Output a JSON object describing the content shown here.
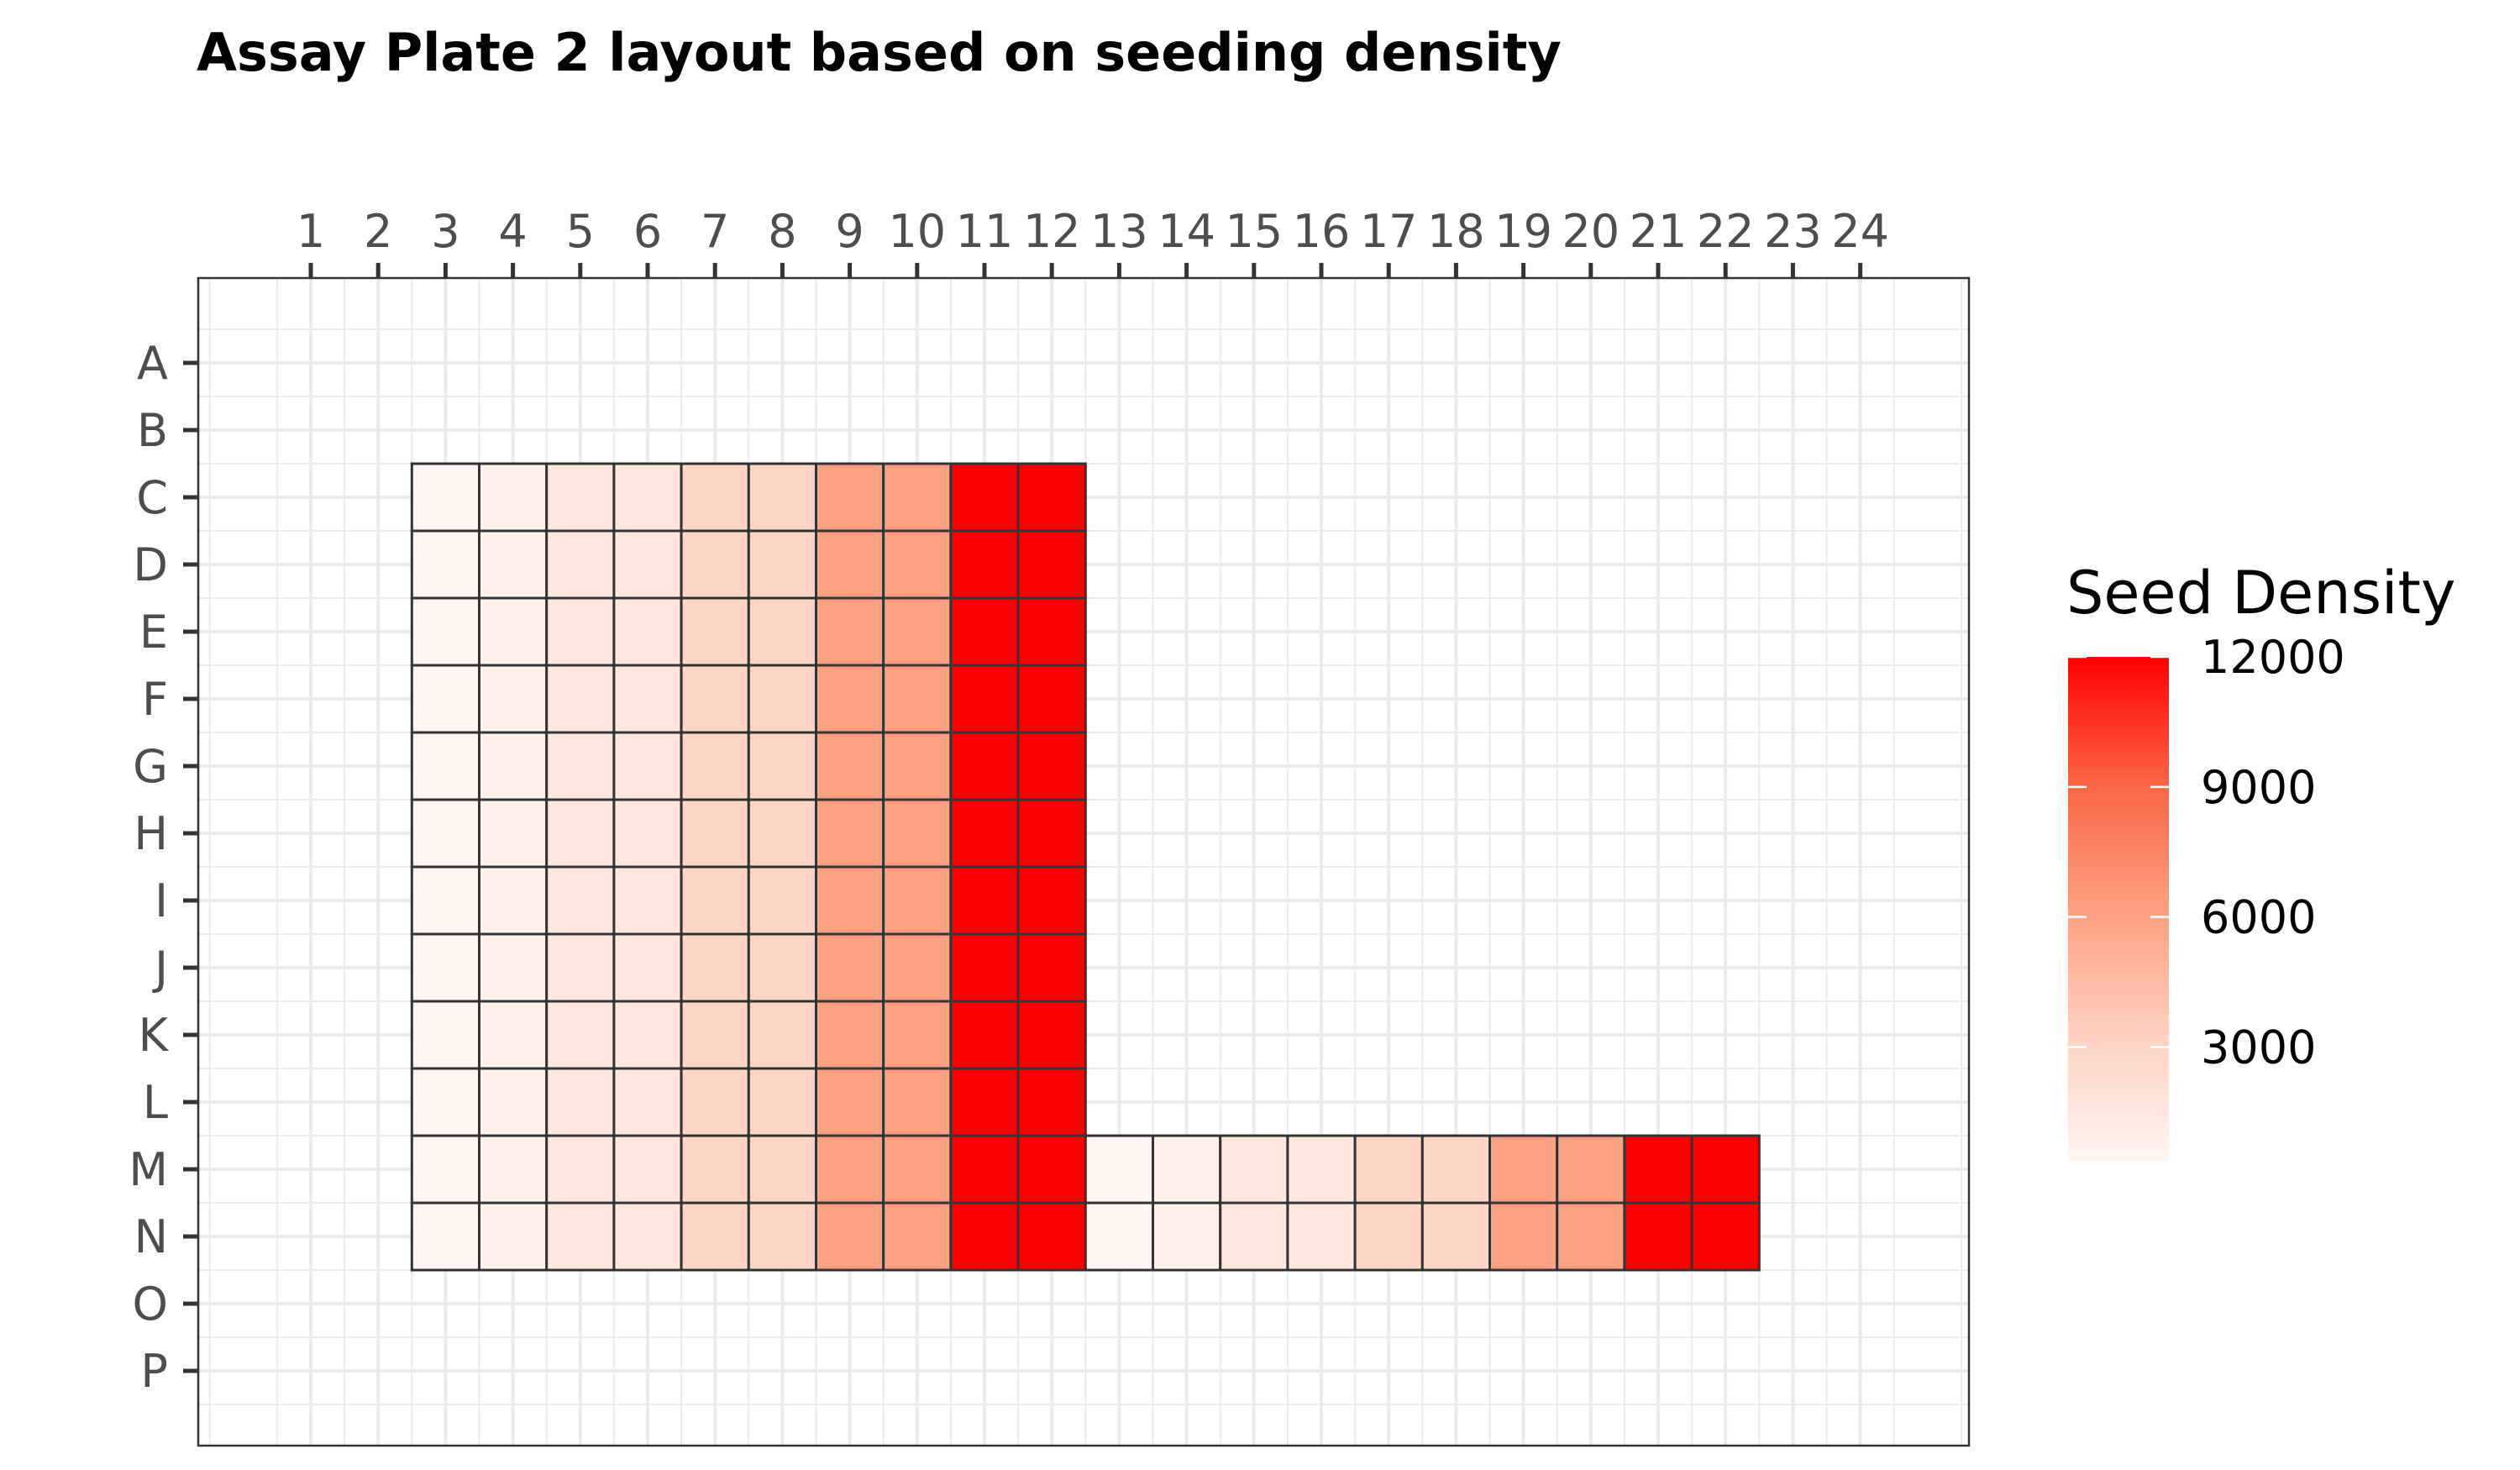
{
  "chart_data": {
    "type": "heatmap",
    "title": "Assay Plate 2 layout based on seeding density",
    "columns": [
      "1",
      "2",
      "3",
      "4",
      "5",
      "6",
      "7",
      "8",
      "9",
      "10",
      "11",
      "12",
      "13",
      "14",
      "15",
      "16",
      "17",
      "18",
      "19",
      "20",
      "21",
      "22",
      "23",
      "24"
    ],
    "rows": [
      "A",
      "B",
      "C",
      "D",
      "E",
      "F",
      "G",
      "H",
      "I",
      "J",
      "K",
      "L",
      "M",
      "N",
      "O",
      "P"
    ],
    "x_axis_position": "top",
    "grid": true,
    "legend": {
      "title": "Seed Density",
      "placement": "right",
      "breaks": [
        12000,
        9000,
        6000,
        3000
      ],
      "range": [
        375,
        12000
      ],
      "low_color": "#fff5f0",
      "high_color": "#ff0000"
    },
    "cells": [
      {
        "row": "C",
        "col": "3",
        "value": 375
      },
      {
        "row": "C",
        "col": "4",
        "value": 750
      },
      {
        "row": "C",
        "col": "5",
        "value": 1500
      },
      {
        "row": "C",
        "col": "6",
        "value": 1500
      },
      {
        "row": "C",
        "col": "7",
        "value": 3000
      },
      {
        "row": "C",
        "col": "8",
        "value": 3000
      },
      {
        "row": "C",
        "col": "9",
        "value": 6000
      },
      {
        "row": "C",
        "col": "10",
        "value": 6000
      },
      {
        "row": "C",
        "col": "11",
        "value": 12000
      },
      {
        "row": "C",
        "col": "12",
        "value": 12000
      },
      {
        "row": "D",
        "col": "3",
        "value": 375
      },
      {
        "row": "D",
        "col": "4",
        "value": 750
      },
      {
        "row": "D",
        "col": "5",
        "value": 1500
      },
      {
        "row": "D",
        "col": "6",
        "value": 1500
      },
      {
        "row": "D",
        "col": "7",
        "value": 3000
      },
      {
        "row": "D",
        "col": "8",
        "value": 3000
      },
      {
        "row": "D",
        "col": "9",
        "value": 6000
      },
      {
        "row": "D",
        "col": "10",
        "value": 6000
      },
      {
        "row": "D",
        "col": "11",
        "value": 12000
      },
      {
        "row": "D",
        "col": "12",
        "value": 12000
      },
      {
        "row": "E",
        "col": "3",
        "value": 375
      },
      {
        "row": "E",
        "col": "4",
        "value": 750
      },
      {
        "row": "E",
        "col": "5",
        "value": 1500
      },
      {
        "row": "E",
        "col": "6",
        "value": 1500
      },
      {
        "row": "E",
        "col": "7",
        "value": 3000
      },
      {
        "row": "E",
        "col": "8",
        "value": 3000
      },
      {
        "row": "E",
        "col": "9",
        "value": 6000
      },
      {
        "row": "E",
        "col": "10",
        "value": 6000
      },
      {
        "row": "E",
        "col": "11",
        "value": 12000
      },
      {
        "row": "E",
        "col": "12",
        "value": 12000
      },
      {
        "row": "F",
        "col": "3",
        "value": 375
      },
      {
        "row": "F",
        "col": "4",
        "value": 750
      },
      {
        "row": "F",
        "col": "5",
        "value": 1500
      },
      {
        "row": "F",
        "col": "6",
        "value": 1500
      },
      {
        "row": "F",
        "col": "7",
        "value": 3000
      },
      {
        "row": "F",
        "col": "8",
        "value": 3000
      },
      {
        "row": "F",
        "col": "9",
        "value": 6000
      },
      {
        "row": "F",
        "col": "10",
        "value": 6000
      },
      {
        "row": "F",
        "col": "11",
        "value": 12000
      },
      {
        "row": "F",
        "col": "12",
        "value": 12000
      },
      {
        "row": "G",
        "col": "3",
        "value": 375
      },
      {
        "row": "G",
        "col": "4",
        "value": 750
      },
      {
        "row": "G",
        "col": "5",
        "value": 1500
      },
      {
        "row": "G",
        "col": "6",
        "value": 1500
      },
      {
        "row": "G",
        "col": "7",
        "value": 3000
      },
      {
        "row": "G",
        "col": "8",
        "value": 3000
      },
      {
        "row": "G",
        "col": "9",
        "value": 6000
      },
      {
        "row": "G",
        "col": "10",
        "value": 6000
      },
      {
        "row": "G",
        "col": "11",
        "value": 12000
      },
      {
        "row": "G",
        "col": "12",
        "value": 12000
      },
      {
        "row": "H",
        "col": "3",
        "value": 375
      },
      {
        "row": "H",
        "col": "4",
        "value": 750
      },
      {
        "row": "H",
        "col": "5",
        "value": 1500
      },
      {
        "row": "H",
        "col": "6",
        "value": 1500
      },
      {
        "row": "H",
        "col": "7",
        "value": 3000
      },
      {
        "row": "H",
        "col": "8",
        "value": 3000
      },
      {
        "row": "H",
        "col": "9",
        "value": 6000
      },
      {
        "row": "H",
        "col": "10",
        "value": 6000
      },
      {
        "row": "H",
        "col": "11",
        "value": 12000
      },
      {
        "row": "H",
        "col": "12",
        "value": 12000
      },
      {
        "row": "I",
        "col": "3",
        "value": 375
      },
      {
        "row": "I",
        "col": "4",
        "value": 750
      },
      {
        "row": "I",
        "col": "5",
        "value": 1500
      },
      {
        "row": "I",
        "col": "6",
        "value": 1500
      },
      {
        "row": "I",
        "col": "7",
        "value": 3000
      },
      {
        "row": "I",
        "col": "8",
        "value": 3000
      },
      {
        "row": "I",
        "col": "9",
        "value": 6000
      },
      {
        "row": "I",
        "col": "10",
        "value": 6000
      },
      {
        "row": "I",
        "col": "11",
        "value": 12000
      },
      {
        "row": "I",
        "col": "12",
        "value": 12000
      },
      {
        "row": "J",
        "col": "3",
        "value": 375
      },
      {
        "row": "J",
        "col": "4",
        "value": 750
      },
      {
        "row": "J",
        "col": "5",
        "value": 1500
      },
      {
        "row": "J",
        "col": "6",
        "value": 1500
      },
      {
        "row": "J",
        "col": "7",
        "value": 3000
      },
      {
        "row": "J",
        "col": "8",
        "value": 3000
      },
      {
        "row": "J",
        "col": "9",
        "value": 6000
      },
      {
        "row": "J",
        "col": "10",
        "value": 6000
      },
      {
        "row": "J",
        "col": "11",
        "value": 12000
      },
      {
        "row": "J",
        "col": "12",
        "value": 12000
      },
      {
        "row": "K",
        "col": "3",
        "value": 375
      },
      {
        "row": "K",
        "col": "4",
        "value": 750
      },
      {
        "row": "K",
        "col": "5",
        "value": 1500
      },
      {
        "row": "K",
        "col": "6",
        "value": 1500
      },
      {
        "row": "K",
        "col": "7",
        "value": 3000
      },
      {
        "row": "K",
        "col": "8",
        "value": 3000
      },
      {
        "row": "K",
        "col": "9",
        "value": 6000
      },
      {
        "row": "K",
        "col": "10",
        "value": 6000
      },
      {
        "row": "K",
        "col": "11",
        "value": 12000
      },
      {
        "row": "K",
        "col": "12",
        "value": 12000
      },
      {
        "row": "L",
        "col": "3",
        "value": 375
      },
      {
        "row": "L",
        "col": "4",
        "value": 750
      },
      {
        "row": "L",
        "col": "5",
        "value": 1500
      },
      {
        "row": "L",
        "col": "6",
        "value": 1500
      },
      {
        "row": "L",
        "col": "7",
        "value": 3000
      },
      {
        "row": "L",
        "col": "8",
        "value": 3000
      },
      {
        "row": "L",
        "col": "9",
        "value": 6000
      },
      {
        "row": "L",
        "col": "10",
        "value": 6000
      },
      {
        "row": "L",
        "col": "11",
        "value": 12000
      },
      {
        "row": "L",
        "col": "12",
        "value": 12000
      },
      {
        "row": "M",
        "col": "3",
        "value": 375
      },
      {
        "row": "M",
        "col": "4",
        "value": 750
      },
      {
        "row": "M",
        "col": "5",
        "value": 1500
      },
      {
        "row": "M",
        "col": "6",
        "value": 1500
      },
      {
        "row": "M",
        "col": "7",
        "value": 3000
      },
      {
        "row": "M",
        "col": "8",
        "value": 3000
      },
      {
        "row": "M",
        "col": "9",
        "value": 6000
      },
      {
        "row": "M",
        "col": "10",
        "value": 6000
      },
      {
        "row": "M",
        "col": "11",
        "value": 12000
      },
      {
        "row": "M",
        "col": "12",
        "value": 12000
      },
      {
        "row": "M",
        "col": "13",
        "value": 375
      },
      {
        "row": "M",
        "col": "14",
        "value": 750
      },
      {
        "row": "M",
        "col": "15",
        "value": 1500
      },
      {
        "row": "M",
        "col": "16",
        "value": 1500
      },
      {
        "row": "M",
        "col": "17",
        "value": 3000
      },
      {
        "row": "M",
        "col": "18",
        "value": 3000
      },
      {
        "row": "M",
        "col": "19",
        "value": 6000
      },
      {
        "row": "M",
        "col": "20",
        "value": 6000
      },
      {
        "row": "M",
        "col": "21",
        "value": 12000
      },
      {
        "row": "M",
        "col": "22",
        "value": 12000
      },
      {
        "row": "N",
        "col": "3",
        "value": 375
      },
      {
        "row": "N",
        "col": "4",
        "value": 750
      },
      {
        "row": "N",
        "col": "5",
        "value": 1500
      },
      {
        "row": "N",
        "col": "6",
        "value": 1500
      },
      {
        "row": "N",
        "col": "7",
        "value": 3000
      },
      {
        "row": "N",
        "col": "8",
        "value": 3000
      },
      {
        "row": "N",
        "col": "9",
        "value": 6000
      },
      {
        "row": "N",
        "col": "10",
        "value": 6000
      },
      {
        "row": "N",
        "col": "11",
        "value": 12000
      },
      {
        "row": "N",
        "col": "12",
        "value": 12000
      },
      {
        "row": "N",
        "col": "13",
        "value": 375
      },
      {
        "row": "N",
        "col": "14",
        "value": 750
      },
      {
        "row": "N",
        "col": "15",
        "value": 1500
      },
      {
        "row": "N",
        "col": "16",
        "value": 1500
      },
      {
        "row": "N",
        "col": "17",
        "value": 3000
      },
      {
        "row": "N",
        "col": "18",
        "value": 3000
      },
      {
        "row": "N",
        "col": "19",
        "value": 6000
      },
      {
        "row": "N",
        "col": "20",
        "value": 6000
      },
      {
        "row": "N",
        "col": "21",
        "value": 12000
      },
      {
        "row": "N",
        "col": "22",
        "value": 12000
      }
    ]
  }
}
